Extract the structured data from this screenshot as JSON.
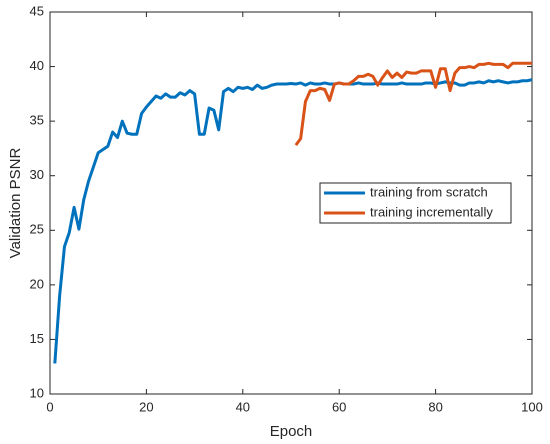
{
  "chart_data": {
    "type": "line",
    "xlabel": "Epoch",
    "ylabel": "Validation PSNR",
    "x": [
      1,
      2,
      3,
      4,
      5,
      6,
      7,
      8,
      9,
      10,
      11,
      12,
      13,
      14,
      15,
      16,
      17,
      18,
      19,
      20,
      21,
      22,
      23,
      24,
      25,
      26,
      27,
      28,
      29,
      30,
      31,
      32,
      33,
      34,
      35,
      36,
      37,
      38,
      39,
      40,
      41,
      42,
      43,
      44,
      45,
      46,
      47,
      48,
      49,
      50,
      51,
      52,
      53,
      54,
      55,
      56,
      57,
      58,
      59,
      60,
      61,
      62,
      63,
      64,
      65,
      66,
      67,
      68,
      69,
      70,
      71,
      72,
      73,
      74,
      75,
      76,
      77,
      78,
      79,
      80,
      81,
      82,
      83,
      84,
      85,
      86,
      87,
      88,
      89,
      90,
      91,
      92,
      93,
      94,
      95,
      96,
      97,
      98,
      99,
      100
    ],
    "series": [
      {
        "name": "training from scratch",
        "color": "#0072BD",
        "values": [
          12.8,
          19,
          23.5,
          24.8,
          27.1,
          25.1,
          27.8,
          29.5,
          30.8,
          32.1,
          32.4,
          32.7,
          34.0,
          33.5,
          35.0,
          33.9,
          33.8,
          33.8,
          35.7,
          36.3,
          36.8,
          37.3,
          37.1,
          37.5,
          37.2,
          37.2,
          37.6,
          37.4,
          37.8,
          37.5,
          33.8,
          33.8,
          36.2,
          36.0,
          34.2,
          37.7,
          38.0,
          37.7,
          38.1,
          38.0,
          38.1,
          37.9,
          38.3,
          38.0,
          38.1,
          38.3,
          38.4,
          38.4,
          38.4,
          38.45,
          38.4,
          38.5,
          38.3,
          38.5,
          38.4,
          38.4,
          38.5,
          38.4,
          38.4,
          38.5,
          38.4,
          38.4,
          38.4,
          38.5,
          38.4,
          38.4,
          38.4,
          38.5,
          38.4,
          38.4,
          38.4,
          38.4,
          38.5,
          38.4,
          38.4,
          38.4,
          38.4,
          38.5,
          38.5,
          38.4,
          38.5,
          38.6,
          38.5,
          38.5,
          38.3,
          38.3,
          38.5,
          38.5,
          38.6,
          38.5,
          38.7,
          38.6,
          38.7,
          38.6,
          38.5,
          38.6,
          38.6,
          38.7,
          38.7,
          38.8
        ]
      },
      {
        "name": "training incrementally",
        "color": "#D95319",
        "values": [
          null,
          null,
          null,
          null,
          null,
          null,
          null,
          null,
          null,
          null,
          null,
          null,
          null,
          null,
          null,
          null,
          null,
          null,
          null,
          null,
          null,
          null,
          null,
          null,
          null,
          null,
          null,
          null,
          null,
          null,
          null,
          null,
          null,
          null,
          null,
          null,
          null,
          null,
          null,
          null,
          null,
          null,
          null,
          null,
          null,
          null,
          null,
          null,
          null,
          null,
          32.8,
          33.4,
          36.8,
          37.8,
          37.8,
          38.0,
          37.9,
          36.9,
          38.4,
          38.5,
          38.4,
          38.4,
          38.7,
          39.1,
          39.1,
          39.3,
          39.1,
          38.3,
          39.0,
          39.6,
          39.0,
          39.4,
          39.0,
          39.5,
          39.4,
          39.4,
          39.6,
          39.6,
          39.6,
          38.1,
          39.8,
          39.8,
          37.8,
          39.4,
          39.9,
          39.9,
          40.0,
          39.9,
          40.2,
          40.2,
          40.3,
          40.2,
          40.2,
          40.2,
          39.9,
          40.3,
          40.3,
          40.3,
          40.3,
          40.3
        ]
      }
    ],
    "xlim": [
      0,
      100
    ],
    "xticks": [
      0,
      20,
      40,
      60,
      80,
      100
    ],
    "ylim": [
      10,
      45
    ],
    "yticks": [
      10,
      15,
      20,
      25,
      30,
      35,
      40,
      45
    ],
    "legend": "east"
  }
}
